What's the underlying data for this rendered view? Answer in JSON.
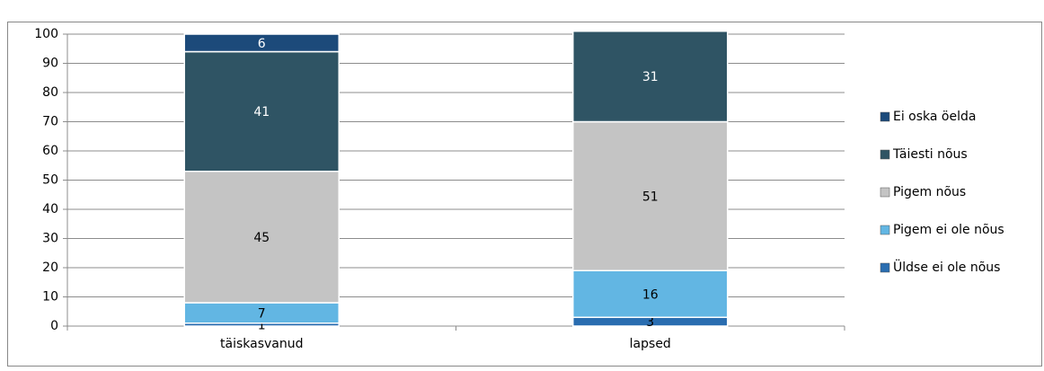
{
  "chart_data": {
    "type": "stacked-bar",
    "categories": [
      "täiskasvanud",
      "lapsed"
    ],
    "series": [
      {
        "name": "Üldse ei ole nõus",
        "color": "#2a6db0",
        "values": [
          1,
          3
        ]
      },
      {
        "name": "Pigem ei ole nõus",
        "color": "#62b6e3",
        "values": [
          7,
          16
        ]
      },
      {
        "name": "Pigem nõus",
        "color": "#c4c4c4",
        "values": [
          45,
          51
        ]
      },
      {
        "name": "Täiesti nõus",
        "color": "#2f5464",
        "values": [
          41,
          31
        ]
      },
      {
        "name": "Ei oska öelda",
        "color": "#1c4a7a",
        "values": [
          6,
          null
        ]
      }
    ],
    "ylim": [
      0,
      100
    ],
    "yticks": [
      0,
      10,
      20,
      30,
      40,
      50,
      60,
      70,
      80,
      90,
      100
    ],
    "grid": true,
    "legend": "right"
  }
}
